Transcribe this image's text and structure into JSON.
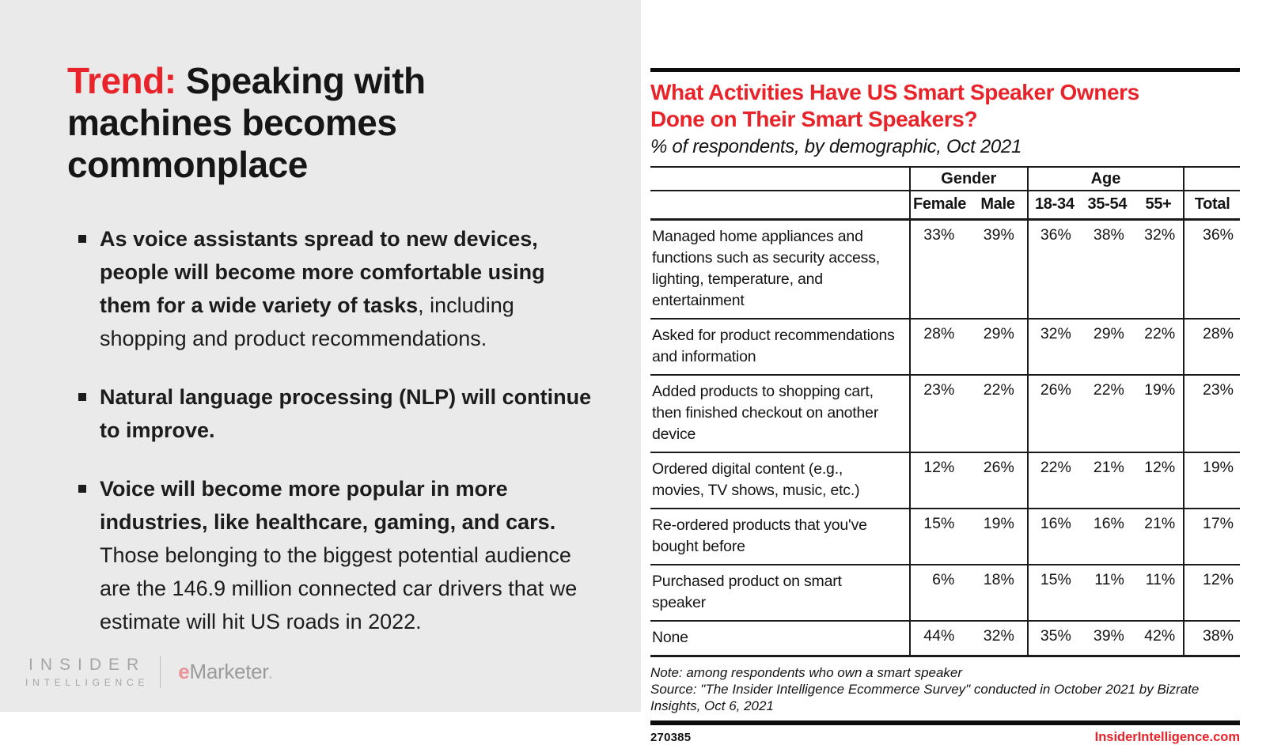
{
  "left_panel": {
    "title": {
      "prefix": "Trend:",
      "rest": " Speaking with machines becomes commonplace"
    },
    "bullets": [
      {
        "bold": "As voice assistants spread to new devices, people will become more comfortable using them for a wide variety of tasks",
        "regular": ", including shopping and product recommendations."
      },
      {
        "bold": "Natural language processing (NLP) will continue to improve.",
        "regular": ""
      },
      {
        "bold": "Voice will become more popular in more industries, like healthcare, gaming, and cars.",
        "regular": " Those belonging to the biggest potential audience are the 146.9 million connected car drivers that we estimate will hit US roads in 2022."
      }
    ],
    "logo": {
      "insider_line1": "INSIDER",
      "insider_line2": "INTELLIGENCE",
      "emarketer_e": "e",
      "emarketer_rest": "Marketer",
      "emarketer_dot": "."
    }
  },
  "chart": {
    "title_lines": [
      "What Activities Have US Smart Speaker Owners",
      "Done on Their Smart Speakers?"
    ],
    "subtitle": "% of respondents, by demographic, Oct 2021",
    "note_line": "Note: among respondents who own a smart speaker",
    "source_line": "Source: \"The Insider Intelligence Ecommerce Survey\" conducted in October 2021 by Bizrate Insights, Oct 6, 2021",
    "footer_id": "270385",
    "footer_site": "InsiderIntelligence.com"
  },
  "chart_data": {
    "type": "table",
    "title": "What Activities Have US Smart Speaker Owners Done on Their Smart Speakers?",
    "subtitle": "% of respondents, by demographic, Oct 2021",
    "column_groups": [
      {
        "label": "",
        "span": 1
      },
      {
        "label": "Gender",
        "span": 2
      },
      {
        "label": "Age",
        "span": 3
      },
      {
        "label": "",
        "span": 1
      }
    ],
    "columns": [
      "Female",
      "Male",
      "18-34",
      "35-54",
      "55+",
      "Total"
    ],
    "rows": [
      {
        "label": "Managed home appliances and functions such as security access, lighting, temperature, and entertainment",
        "values": [
          "33%",
          "39%",
          "36%",
          "38%",
          "32%",
          "36%"
        ]
      },
      {
        "label": "Asked for product recommendations and information",
        "values": [
          "28%",
          "29%",
          "32%",
          "29%",
          "22%",
          "28%"
        ]
      },
      {
        "label": "Added products to shopping cart, then finished checkout on another device",
        "values": [
          "23%",
          "22%",
          "26%",
          "22%",
          "19%",
          "23%"
        ]
      },
      {
        "label": "Ordered digital content (e.g., movies, TV shows, music, etc.)",
        "values": [
          "12%",
          "26%",
          "22%",
          "21%",
          "12%",
          "19%"
        ]
      },
      {
        "label": "Re-ordered products that you've bought before",
        "values": [
          "15%",
          "19%",
          "16%",
          "16%",
          "21%",
          "17%"
        ]
      },
      {
        "label": "Purchased product on smart speaker",
        "values": [
          "6%",
          "18%",
          "15%",
          "11%",
          "11%",
          "12%"
        ]
      },
      {
        "label": "None",
        "values": [
          "44%",
          "32%",
          "35%",
          "39%",
          "42%",
          "38%"
        ]
      }
    ]
  },
  "colors": {
    "accent_red": "#e8232a",
    "panel_gray": "#eaeaea",
    "text_black": "#161616",
    "logo_gray": "#a5a5a5",
    "emarketer_e_red": "#e9949a"
  }
}
